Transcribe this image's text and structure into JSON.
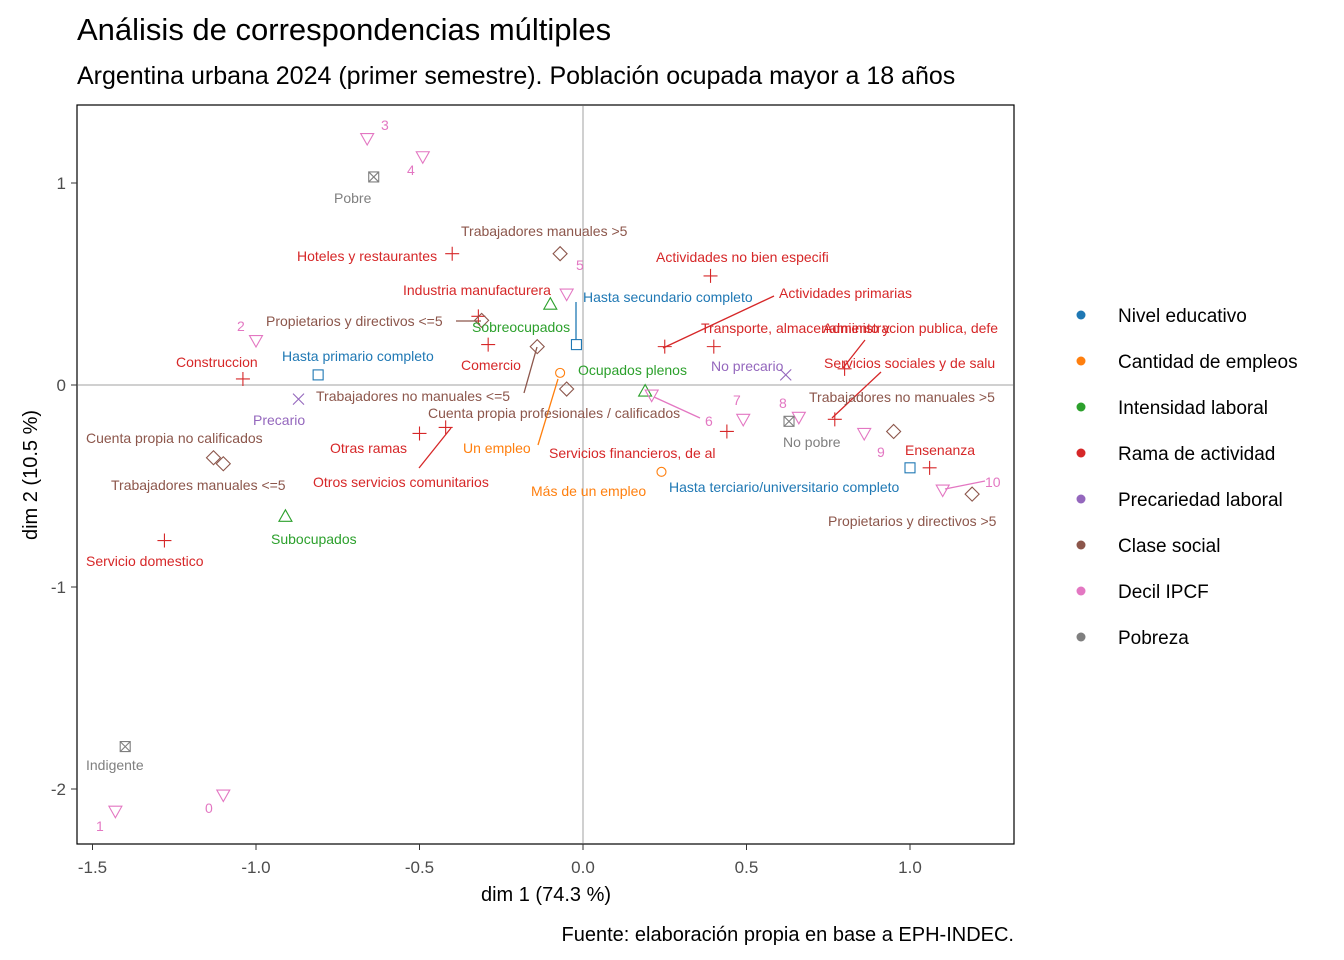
{
  "chart_data": {
    "type": "scatter",
    "title": "Análisis de correspondencias múltiples",
    "subtitle": "Argentina urbana 2024 (primer semestre). Población ocupada mayor a 18 años",
    "xlabel": "dim 1 (74.3 %)",
    "ylabel": "dim 2 (10.5 %)",
    "caption": "Fuente: elaboración propia en base a EPH-INDEC.",
    "xlim": [
      -1.55,
      1.32
    ],
    "ylim": [
      -2.27,
      1.38
    ],
    "x_ticks": [
      "-1.5",
      "-1.0",
      "-0.5",
      "0.0",
      "0.5",
      "1.0"
    ],
    "y_ticks": [
      "1",
      "0",
      "-1",
      "-2"
    ],
    "grid": false,
    "legend_position": "right",
    "colors": {
      "Nivel educativo": "#1F78B4",
      "Cantidad de empleos": "#FF7F0E",
      "Intensidad laboral": "#2CA02C",
      "Rama de actividad": "#D62728",
      "Precariedad laboral": "#9467BD",
      "Clase social": "#8C564B",
      "Decil IPCF": "#E377C2",
      "Pobreza": "#7F7F7F"
    },
    "legend": [
      "Nivel educativo",
      "Cantidad de empleos",
      "Intensidad laboral",
      "Rama de actividad",
      "Precariedad laboral",
      "Clase social",
      "Decil IPCF",
      "Pobreza"
    ],
    "series": [
      {
        "name": "Nivel educativo",
        "shape": "square",
        "points": [
          {
            "label": "Hasta primario completo",
            "x": -0.81,
            "y": 0.05
          },
          {
            "label": "Hasta secundario completo",
            "x": -0.02,
            "y": 0.2
          },
          {
            "label": "Hasta terciario/universitario completo",
            "x": 1.0,
            "y": -0.41
          }
        ]
      },
      {
        "name": "Cantidad de empleos",
        "shape": "circle",
        "points": [
          {
            "label": "Un empleo",
            "x": -0.07,
            "y": 0.06
          },
          {
            "label": "Más de un empleo",
            "x": 0.24,
            "y": -0.43
          }
        ]
      },
      {
        "name": "Intensidad laboral",
        "shape": "triangle",
        "points": [
          {
            "label": "Sobreocupados",
            "x": -0.1,
            "y": 0.4
          },
          {
            "label": "Ocupados plenos",
            "x": 0.19,
            "y": -0.03
          },
          {
            "label": "Subocupados",
            "x": -0.91,
            "y": -0.65
          }
        ]
      },
      {
        "name": "Rama de actividad",
        "shape": "plus",
        "points": [
          {
            "label": "Hoteles y restaurantes",
            "x": -0.4,
            "y": 0.65
          },
          {
            "label": "Actividades no bien especifi",
            "x": 0.39,
            "y": 0.54
          },
          {
            "label": "Industria manufacturera",
            "x": -0.32,
            "y": 0.34
          },
          {
            "label": "Actividades primarias",
            "x": 0.25,
            "y": 0.19
          },
          {
            "label": "Transporte, almacenamiento y",
            "x": 0.4,
            "y": 0.19
          },
          {
            "label": "Administracion publica, defe",
            "x": 0.8,
            "y": 0.08
          },
          {
            "label": "Comercio",
            "x": -0.29,
            "y": 0.2
          },
          {
            "label": "Construccion",
            "x": -1.04,
            "y": 0.03
          },
          {
            "label": "Servicios sociales y de salu",
            "x": 0.77,
            "y": -0.17
          },
          {
            "label": "Otras ramas",
            "x": -0.5,
            "y": -0.24
          },
          {
            "label": "Otros servicios comunitarios",
            "x": -0.42,
            "y": -0.21
          },
          {
            "label": "Servicios financieros, de al",
            "x": 0.44,
            "y": -0.23
          },
          {
            "label": "Ensenanza",
            "x": 1.06,
            "y": -0.41
          },
          {
            "label": "Servicio domestico",
            "x": -1.28,
            "y": -0.77
          }
        ]
      },
      {
        "name": "Precariedad laboral",
        "shape": "cross",
        "points": [
          {
            "label": "Precario",
            "x": -0.87,
            "y": -0.07
          },
          {
            "label": "No precario",
            "x": 0.62,
            "y": 0.05
          }
        ]
      },
      {
        "name": "Clase social",
        "shape": "diamond",
        "points": [
          {
            "label": "Trabajadores manuales >5",
            "x": -0.07,
            "y": 0.65
          },
          {
            "label": "Propietarios y directivos <=5",
            "x": -0.31,
            "y": 0.32
          },
          {
            "label": "Trabajadores no manuales <=5",
            "x": -0.14,
            "y": 0.19
          },
          {
            "label": "Cuenta propia profesionales / calificados",
            "x": -0.05,
            "y": -0.02
          },
          {
            "label": "Trabajadores no manuales >5",
            "x": 0.95,
            "y": -0.23
          },
          {
            "label": "Cuenta propia no calificados",
            "x": -1.13,
            "y": -0.36
          },
          {
            "label": "Trabajadores manuales <=5",
            "x": -1.1,
            "y": -0.39
          },
          {
            "label": "Propietarios y directivos >5",
            "x": 1.19,
            "y": -0.54
          }
        ]
      },
      {
        "name": "Decil IPCF",
        "shape": "triangle-down",
        "points": [
          {
            "label": "3",
            "x": -0.66,
            "y": 1.22
          },
          {
            "label": "4",
            "x": -0.49,
            "y": 1.13
          },
          {
            "label": "5",
            "x": -0.05,
            "y": 0.45
          },
          {
            "label": "2",
            "x": -1.0,
            "y": 0.22
          },
          {
            "label": "6",
            "x": 0.21,
            "y": -0.05
          },
          {
            "label": "7",
            "x": 0.49,
            "y": -0.17
          },
          {
            "label": "8",
            "x": 0.66,
            "y": -0.16
          },
          {
            "label": "9",
            "x": 0.86,
            "y": -0.24
          },
          {
            "label": "10",
            "x": 1.1,
            "y": -0.52
          },
          {
            "label": "0",
            "x": -1.1,
            "y": -2.03
          },
          {
            "label": "1",
            "x": -1.43,
            "y": -2.11
          }
        ]
      },
      {
        "name": "Pobreza",
        "shape": "boxcross",
        "points": [
          {
            "label": "Pobre",
            "x": -0.64,
            "y": 1.03
          },
          {
            "label": "No pobre",
            "x": 0.63,
            "y": -0.18
          },
          {
            "label": "Indigente",
            "x": -1.4,
            "y": -1.79
          }
        ]
      }
    ]
  }
}
